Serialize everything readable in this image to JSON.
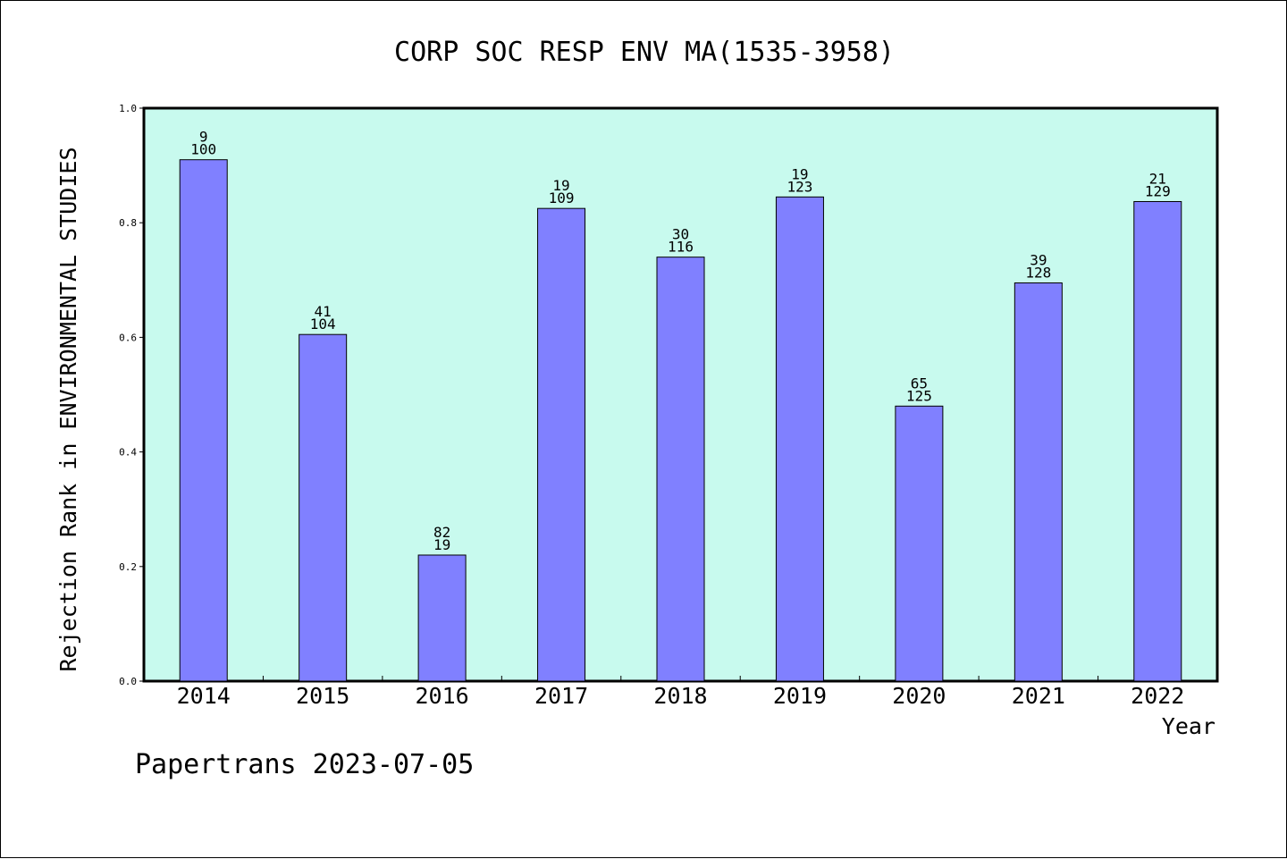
{
  "chart_data": {
    "type": "bar",
    "title": "CORP SOC RESP ENV MA(1535-3958)",
    "xlabel": "Year",
    "ylabel": "Rejection Rank in ENVIRONMENTAL STUDIES",
    "ylim": [
      0,
      1.0
    ],
    "yticks": [
      "0.0",
      "0.2",
      "0.4",
      "0.6",
      "0.8",
      "1.0"
    ],
    "categories": [
      "2014",
      "2015",
      "2016",
      "2017",
      "2018",
      "2019",
      "2020",
      "2021",
      "2022"
    ],
    "values": [
      0.91,
      0.605,
      0.22,
      0.825,
      0.74,
      0.845,
      0.48,
      0.695,
      0.837
    ],
    "labels_top": [
      "9",
      "41",
      "82",
      "19",
      "30",
      "19",
      "65",
      "39",
      "21"
    ],
    "labels_bottom": [
      "100",
      "104",
      "19",
      "109",
      "116",
      "123",
      "125",
      "128",
      "129"
    ],
    "grid": false,
    "colors": {
      "plot_background": "#c8faee",
      "bar_fill": "#8080ff",
      "bar_stroke": "#000000"
    }
  },
  "footer": "Papertrans 2023-07-05"
}
